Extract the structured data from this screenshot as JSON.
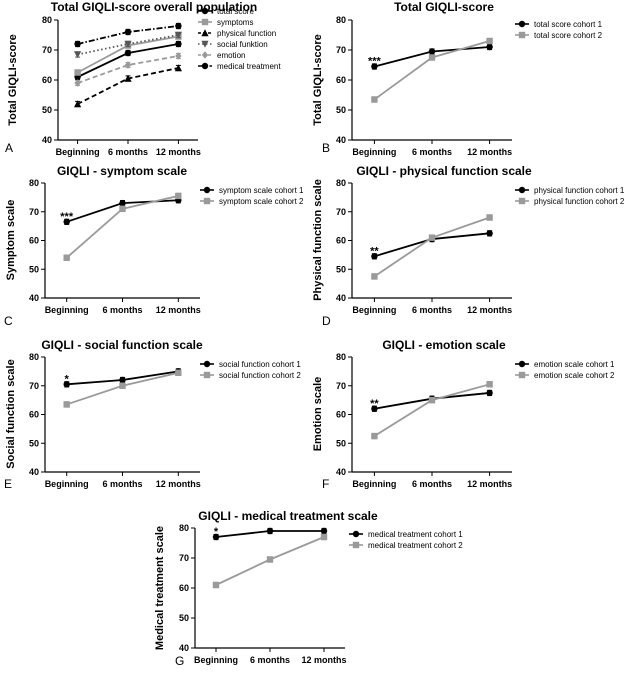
{
  "figure": {
    "charts": [
      {
        "panel_letter": "A",
        "title": "Total GIQLI-score overall population",
        "ylabel": "Total GIQLI-score",
        "categories": [
          "Beginning",
          "6 months",
          "12 months"
        ],
        "ylim": [
          40,
          80
        ],
        "yticks": [
          "40",
          "50",
          "60",
          "70",
          "80"
        ],
        "series": [
          {
            "name": "total score",
            "values": [
              61,
              69,
              72
            ],
            "color": "#000000",
            "dash": "solid",
            "marker": "circle"
          },
          {
            "name": "symptoms",
            "values": [
              62.5,
              71.5,
              74.5
            ],
            "color": "#9a9a9a",
            "dash": "solid",
            "marker": "square"
          },
          {
            "name": "physical function",
            "values": [
              52,
              60.5,
              64
            ],
            "color": "#000000",
            "dash": "dashed",
            "marker": "triangle"
          },
          {
            "name": "social funktion",
            "values": [
              68.5,
              72,
              75
            ],
            "color": "#555555",
            "dash": "dotted",
            "marker": "triangle-down"
          },
          {
            "name": "emotion",
            "values": [
              59,
              65,
              68
            ],
            "color": "#9a9a9a",
            "dash": "dashed",
            "marker": "diamond"
          },
          {
            "name": "medical treatment",
            "values": [
              72,
              76,
              78
            ],
            "color": "#000000",
            "dash": "dashdot",
            "marker": "circle"
          }
        ],
        "annotations": []
      },
      {
        "panel_letter": "B",
        "title": "Total GIQLI-score",
        "ylabel": "Total GIQLI-score",
        "categories": [
          "Beginning",
          "6 months",
          "12 months"
        ],
        "ylim": [
          40,
          80
        ],
        "yticks": [
          "40",
          "50",
          "60",
          "70",
          "80"
        ],
        "series": [
          {
            "name": "total score cohort 1",
            "values": [
              64.5,
              69.5,
              71
            ],
            "color": "#000000",
            "dash": "solid",
            "marker": "circle"
          },
          {
            "name": "total score cohort 2",
            "values": [
              53.5,
              67.5,
              73
            ],
            "color": "#9a9a9a",
            "dash": "solid",
            "marker": "square"
          }
        ],
        "annotations": [
          {
            "text": "***",
            "category": "Beginning",
            "y": 66.5
          }
        ]
      },
      {
        "panel_letter": "C",
        "title": "GIQLI - symptom scale",
        "ylabel": "Symptom scale",
        "categories": [
          "Beginning",
          "6 months",
          "12 months"
        ],
        "ylim": [
          40,
          80
        ],
        "yticks": [
          "40",
          "50",
          "60",
          "70",
          "80"
        ],
        "series": [
          {
            "name": "symptom scale cohort 1",
            "values": [
              66.5,
              73,
              74
            ],
            "color": "#000000",
            "dash": "solid",
            "marker": "circle"
          },
          {
            "name": "symptom scale cohort 2",
            "values": [
              54,
              71,
              75.5
            ],
            "color": "#9a9a9a",
            "dash": "solid",
            "marker": "square"
          }
        ],
        "annotations": [
          {
            "text": "***",
            "category": "Beginning",
            "y": 68.5
          }
        ]
      },
      {
        "panel_letter": "D",
        "title": "GIQLI - physical function scale",
        "ylabel": "Physical function scale",
        "categories": [
          "Beginning",
          "6 months",
          "12 months"
        ],
        "ylim": [
          40,
          80
        ],
        "yticks": [
          "40",
          "50",
          "60",
          "70",
          "80"
        ],
        "series": [
          {
            "name": "physical function cohort 1",
            "values": [
              54.5,
              60.5,
              62.5
            ],
            "color": "#000000",
            "dash": "solid",
            "marker": "circle"
          },
          {
            "name": "physical function cohort 2",
            "values": [
              47.5,
              61,
              68
            ],
            "color": "#9a9a9a",
            "dash": "solid",
            "marker": "square"
          }
        ],
        "annotations": [
          {
            "text": "**",
            "category": "Beginning",
            "y": 56.5
          }
        ]
      },
      {
        "panel_letter": "E",
        "title": "GIQLI - social function scale",
        "ylabel": "Social function scale",
        "categories": [
          "Beginning",
          "6 months",
          "12 months"
        ],
        "ylim": [
          40,
          80
        ],
        "yticks": [
          "40",
          "50",
          "60",
          "70",
          "80"
        ],
        "series": [
          {
            "name": "social function cohort 1",
            "values": [
              70.5,
              72,
              75
            ],
            "color": "#000000",
            "dash": "solid",
            "marker": "circle"
          },
          {
            "name": "social function cohort 2",
            "values": [
              63.5,
              70,
              74.5
            ],
            "color": "#9a9a9a",
            "dash": "solid",
            "marker": "square"
          }
        ],
        "annotations": [
          {
            "text": "*",
            "category": "Beginning",
            "y": 72.5
          }
        ]
      },
      {
        "panel_letter": "F",
        "title": "GIQLI - emotion scale",
        "ylabel": "Emotion scale",
        "categories": [
          "Beginning",
          "6 months",
          "12 months"
        ],
        "ylim": [
          40,
          80
        ],
        "yticks": [
          "40",
          "50",
          "60",
          "70",
          "80"
        ],
        "series": [
          {
            "name": "emotion scale cohort 1",
            "values": [
              62,
              65.5,
              67.5
            ],
            "color": "#000000",
            "dash": "solid",
            "marker": "circle"
          },
          {
            "name": "emotion scale cohort 2",
            "values": [
              52.5,
              65,
              70.5
            ],
            "color": "#9a9a9a",
            "dash": "solid",
            "marker": "square"
          }
        ],
        "annotations": [
          {
            "text": "**",
            "category": "Beginning",
            "y": 64
          }
        ]
      },
      {
        "panel_letter": "G",
        "title": "GIQLI - medical treatment scale",
        "ylabel": "Medical treatment scale",
        "categories": [
          "Beginning",
          "6 months",
          "12 months"
        ],
        "ylim": [
          40,
          80
        ],
        "yticks": [
          "40",
          "50",
          "60",
          "70",
          "80"
        ],
        "series": [
          {
            "name": "medical treatment cohort 1",
            "values": [
              77,
              79,
              79
            ],
            "color": "#000000",
            "dash": "solid",
            "marker": "circle"
          },
          {
            "name": "medical treatment cohort 2",
            "values": [
              61,
              69.5,
              77
            ],
            "color": "#9a9a9a",
            "dash": "solid",
            "marker": "square"
          }
        ],
        "annotations": [
          {
            "text": "*",
            "category": "Beginning",
            "y": 79
          }
        ]
      }
    ]
  },
  "chart_data": [
    {
      "type": "line",
      "title": "Total GIQLI-score overall population",
      "ylabel": "Total GIQLI-score",
      "categories": [
        "Beginning",
        "6 months",
        "12 months"
      ],
      "ylim": [
        40,
        80
      ],
      "series": [
        {
          "name": "total score",
          "values": [
            61,
            69,
            72
          ]
        },
        {
          "name": "symptoms",
          "values": [
            62.5,
            71.5,
            74.5
          ]
        },
        {
          "name": "physical function",
          "values": [
            52,
            60.5,
            64
          ]
        },
        {
          "name": "social funktion",
          "values": [
            68.5,
            72,
            75
          ]
        },
        {
          "name": "emotion",
          "values": [
            59,
            65,
            68
          ]
        },
        {
          "name": "medical treatment",
          "values": [
            72,
            76,
            78
          ]
        }
      ],
      "legend": "right"
    },
    {
      "type": "line",
      "title": "Total GIQLI-score",
      "ylabel": "Total GIQLI-score",
      "categories": [
        "Beginning",
        "6 months",
        "12 months"
      ],
      "ylim": [
        40,
        80
      ],
      "series": [
        {
          "name": "total score cohort 1",
          "values": [
            64.5,
            69.5,
            71
          ]
        },
        {
          "name": "total score cohort 2",
          "values": [
            53.5,
            67.5,
            73
          ]
        }
      ],
      "legend": "right"
    },
    {
      "type": "line",
      "title": "GIQLI - symptom scale",
      "ylabel": "Symptom scale",
      "categories": [
        "Beginning",
        "6 months",
        "12 months"
      ],
      "ylim": [
        40,
        80
      ],
      "series": [
        {
          "name": "symptom scale cohort 1",
          "values": [
            66.5,
            73,
            74
          ]
        },
        {
          "name": "symptom scale cohort 2",
          "values": [
            54,
            71,
            75.5
          ]
        }
      ],
      "legend": "right"
    },
    {
      "type": "line",
      "title": "GIQLI - physical function scale",
      "ylabel": "Physical function scale",
      "categories": [
        "Beginning",
        "6 months",
        "12 months"
      ],
      "ylim": [
        40,
        80
      ],
      "series": [
        {
          "name": "physical function cohort 1",
          "values": [
            54.5,
            60.5,
            62.5
          ]
        },
        {
          "name": "physical function cohort 2",
          "values": [
            47.5,
            61,
            68
          ]
        }
      ],
      "legend": "right"
    },
    {
      "type": "line",
      "title": "GIQLI - social function scale",
      "ylabel": "Social function scale",
      "categories": [
        "Beginning",
        "6 months",
        "12 months"
      ],
      "ylim": [
        40,
        80
      ],
      "series": [
        {
          "name": "social function cohort 1",
          "values": [
            70.5,
            72,
            75
          ]
        },
        {
          "name": "social function cohort 2",
          "values": [
            63.5,
            70,
            74.5
          ]
        }
      ],
      "legend": "right"
    },
    {
      "type": "line",
      "title": "GIQLI - emotion scale",
      "ylabel": "Emotion scale",
      "categories": [
        "Beginning",
        "6 months",
        "12 months"
      ],
      "ylim": [
        40,
        80
      ],
      "series": [
        {
          "name": "emotion scale cohort 1",
          "values": [
            62,
            65.5,
            67.5
          ]
        },
        {
          "name": "emotion scale cohort 2",
          "values": [
            52.5,
            65,
            70.5
          ]
        }
      ],
      "legend": "right"
    },
    {
      "type": "line",
      "title": "GIQLI - medical treatment scale",
      "ylabel": "Medical treatment scale",
      "categories": [
        "Beginning",
        "6 months",
        "12 months"
      ],
      "ylim": [
        40,
        80
      ],
      "series": [
        {
          "name": "medical treatment cohort 1",
          "values": [
            77,
            79,
            79
          ]
        },
        {
          "name": "medical treatment cohort 2",
          "values": [
            61,
            69.5,
            77
          ]
        }
      ],
      "legend": "right"
    }
  ]
}
